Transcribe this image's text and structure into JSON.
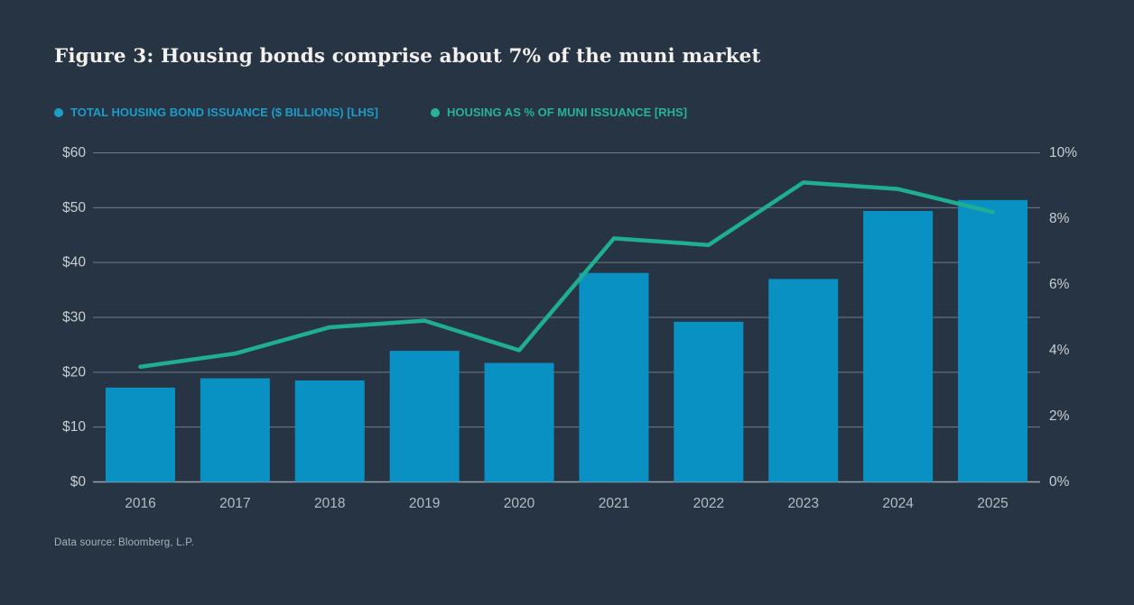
{
  "page": {
    "title": "Figure 3: Housing bonds comprise about 7% of the muni market",
    "source_note": "Data source: Bloomberg, L.P."
  },
  "legend": [
    {
      "label": "TOTAL HOUSING BOND ISSUANCE ($ BILLIONS) [LHS]",
      "color": "#1b9dc9"
    },
    {
      "label": "HOUSING AS % OF MUNI ISSUANCE [RHS]",
      "color": "#27b29b"
    }
  ],
  "colors": {
    "background": "#263443",
    "bar": "#0a91c3",
    "line": "#1fae93",
    "gridline": "#717d88",
    "baseline": "#9aa2aa",
    "title_text": "#f2f1ed",
    "axis_text": "#c8ced4",
    "year_text": "#b5bcc3"
  },
  "chart_data": {
    "type": "bar+line combo",
    "title": "Figure 3: Housing bonds comprise about 7% of the muni market",
    "categories": [
      "2016",
      "2017",
      "2018",
      "2019",
      "2020",
      "2021",
      "2022",
      "2023",
      "2024",
      "2025"
    ],
    "series": [
      {
        "name": "TOTAL HOUSING BOND ISSUANCE ($ BILLIONS) [LHS]",
        "type": "bar",
        "axis": "left",
        "color": "#0a91c3",
        "values": [
          17.2,
          18.9,
          18.5,
          23.9,
          21.7,
          38.1,
          29.2,
          37.0,
          49.4,
          51.4
        ]
      },
      {
        "name": "HOUSING AS % OF MUNI ISSUANCE [RHS]",
        "type": "line",
        "axis": "right",
        "color": "#1fae93",
        "values": [
          3.5,
          3.9,
          4.7,
          4.9,
          4.0,
          7.4,
          7.2,
          9.1,
          8.9,
          8.2
        ]
      }
    ],
    "left_axis": {
      "min": 0,
      "max": 60,
      "step": 10,
      "labels": [
        "$0",
        "$10",
        "$20",
        "$30",
        "$40",
        "$50",
        "$60"
      ]
    },
    "right_axis": {
      "min": 0,
      "max": 10,
      "step": 2,
      "labels": [
        "0%",
        "2%",
        "4%",
        "6%",
        "8%",
        "10%"
      ]
    },
    "grid": {
      "horizontal": true,
      "at": "left-axis ticks"
    },
    "legend_position": "top-left"
  }
}
